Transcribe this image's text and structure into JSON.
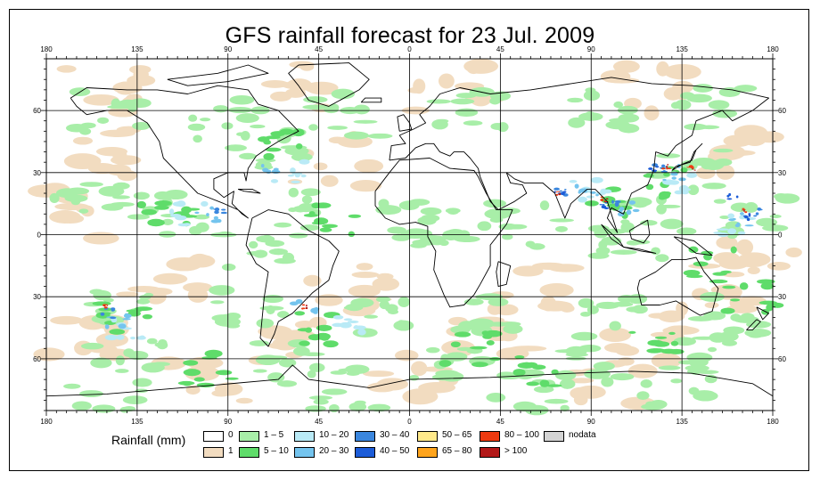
{
  "title": "GFS rainfall forecast for 23 Jul. 2009",
  "longitude_ticks": [
    "180",
    "135",
    "90",
    "45",
    "0",
    "45",
    "90",
    "135",
    "180"
  ],
  "latitude_ticks": [
    "60",
    "30",
    "0",
    "30",
    "60"
  ],
  "legend": {
    "label": "Rainfall (mm)",
    "items": [
      {
        "label": "0",
        "color": "#ffffff"
      },
      {
        "label": "1",
        "color": "#f2dcc0"
      },
      {
        "label": "1 – 5",
        "color": "#a8eea8"
      },
      {
        "label": "5 – 10",
        "color": "#5fdc6a"
      },
      {
        "label": "10 – 20",
        "color": "#b9eaf6"
      },
      {
        "label": "20 – 30",
        "color": "#74c4ee"
      },
      {
        "label": "30 – 40",
        "color": "#3a86de"
      },
      {
        "label": "40 – 50",
        "color": "#1c5cd8"
      },
      {
        "label": "50 – 65",
        "color": "#ffe98a"
      },
      {
        "label": "65 – 80",
        "color": "#ffa41c"
      },
      {
        "label": "80 – 100",
        "color": "#ee3a10"
      },
      {
        "label": "> 100",
        "color": "#b21818"
      },
      {
        "label": "nodata",
        "color": "#d4d4d4"
      }
    ]
  }
}
